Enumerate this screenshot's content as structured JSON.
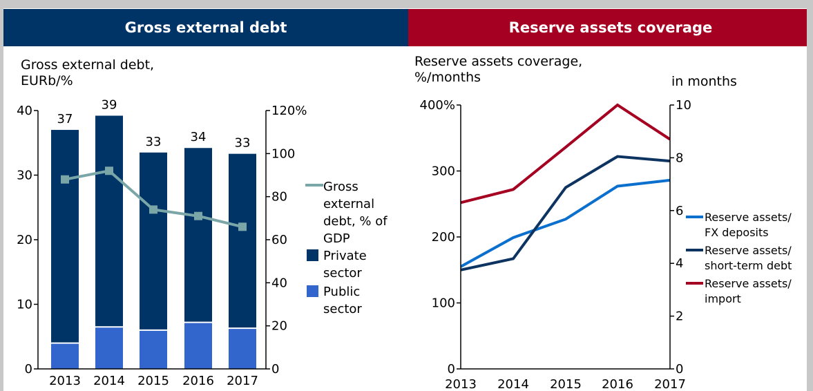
{
  "panels": {
    "left_header": "Gross external debt",
    "right_header": "Reserve assets coverage"
  },
  "chart_data": [
    {
      "type": "bar",
      "title": "Gross external debt,\nEURb/%",
      "title_lines": [
        "Gross external debt,",
        "EURb/%"
      ],
      "categories": [
        "2013",
        "2014",
        "2015",
        "2016",
        "2017"
      ],
      "stacked": true,
      "series": [
        {
          "name": "Public sector",
          "name_lines": [
            "Public",
            "sector"
          ],
          "axis": "left",
          "color": "#3366cc",
          "values": [
            4.0,
            6.5,
            6.0,
            7.2,
            6.3
          ]
        },
        {
          "name": "Private sector",
          "name_lines": [
            "Private",
            "sector"
          ],
          "axis": "left",
          "color": "#003366",
          "values": [
            33.0,
            32.7,
            27.5,
            27.0,
            27.0
          ]
        },
        {
          "name": "Gross external debt, % of GDP",
          "name_lines": [
            "Gross",
            "external",
            "debt, % of",
            "GDP"
          ],
          "type": "line",
          "axis": "right",
          "color": "#7aa6a8",
          "values": [
            88,
            92,
            74,
            71,
            66
          ]
        }
      ],
      "totals": [
        "37",
        "39",
        "33",
        "34",
        "33"
      ],
      "y_left": {
        "min": 0,
        "max": 40,
        "ticks": [
          "0",
          "10",
          "20",
          "30",
          "40"
        ]
      },
      "y_right": {
        "min": 0,
        "max": 120,
        "ticks": [
          "0",
          "20",
          "40",
          "60",
          "80",
          "100",
          "120%"
        ]
      },
      "legend": "right"
    },
    {
      "type": "line",
      "title": "Reserve assets coverage,\n%/months",
      "title_lines": [
        "Reserve assets coverage,",
        "%/months"
      ],
      "right_axis_title": "in months",
      "categories": [
        "2013",
        "2014",
        "2015",
        "2016",
        "2017"
      ],
      "series": [
        {
          "name": "Reserve assets/ FX deposits",
          "name_lines": [
            "Reserve assets/",
            "FX deposits"
          ],
          "axis": "left",
          "color": "#0b6fce",
          "values": [
            155,
            199,
            227,
            277,
            286
          ]
        },
        {
          "name": "Reserve assets/ short-term debt",
          "name_lines": [
            "Reserve assets/",
            "short-term debt"
          ],
          "axis": "left",
          "color": "#0d3461",
          "values": [
            150,
            167,
            275,
            322,
            315
          ]
        },
        {
          "name": "Reserve assets/ import",
          "name_lines": [
            "Reserve assets/",
            "import"
          ],
          "axis": "right",
          "color": "#a50021",
          "values": [
            6.3,
            6.8,
            8.4,
            10.0,
            8.7
          ]
        }
      ],
      "y_left": {
        "min": 0,
        "max": 400,
        "ticks": [
          "0",
          "100",
          "200",
          "300",
          "400%"
        ]
      },
      "y_right": {
        "min": 0,
        "max": 10,
        "ticks": [
          "0",
          "2",
          "4",
          "6",
          "8",
          "10"
        ]
      },
      "legend": "right"
    }
  ]
}
